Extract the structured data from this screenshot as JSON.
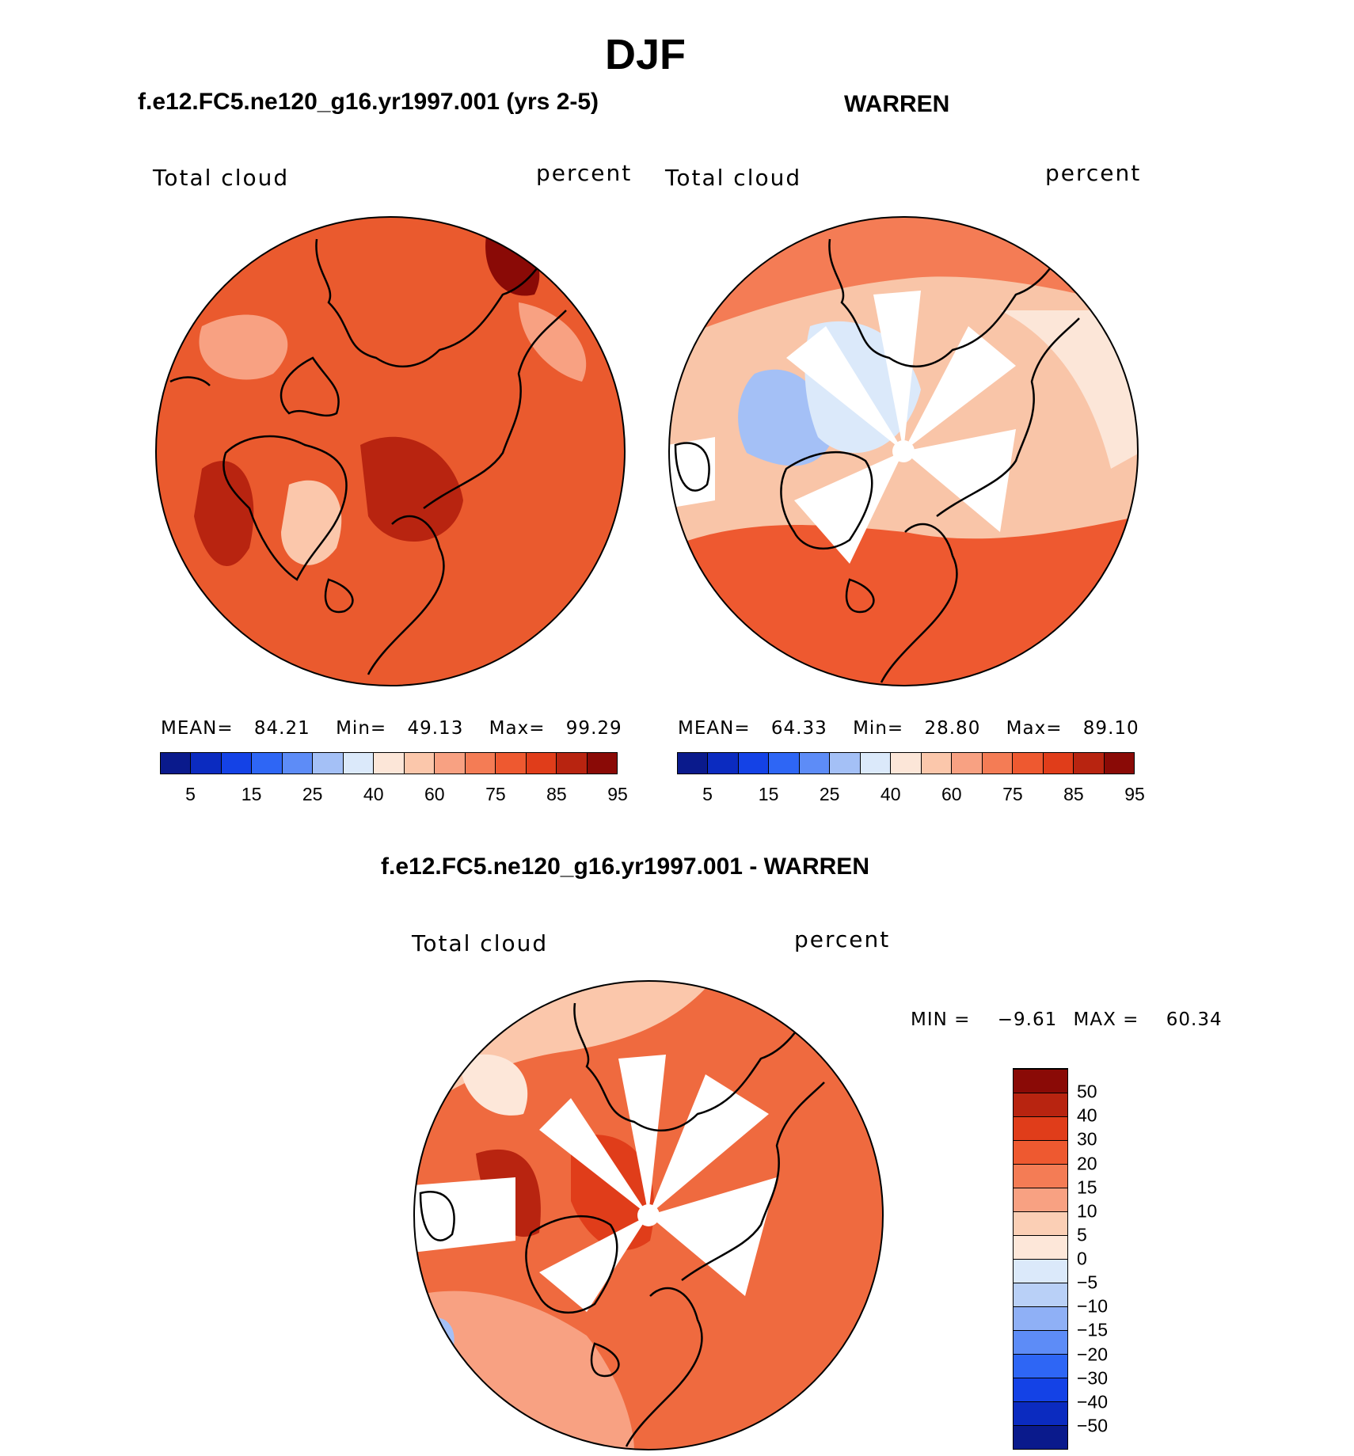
{
  "title": "DJF",
  "panels": {
    "left": {
      "title": "f.e12.FC5.ne120_g16.yr1997.001 (yrs 2-5)",
      "variable": "Total cloud",
      "units": "percent",
      "stats": {
        "mean_label": "MEAN=",
        "mean": "84.21",
        "min_label": "Min=",
        "min": "49.13",
        "max_label": "Max=",
        "max": "99.29"
      }
    },
    "right": {
      "title": "WARREN",
      "variable": "Total cloud",
      "units": "percent",
      "stats": {
        "mean_label": "MEAN=",
        "mean": "64.33",
        "min_label": "Min=",
        "min": "28.80",
        "max_label": "Max=",
        "max": "89.10"
      }
    },
    "diff": {
      "title": "f.e12.FC5.ne120_g16.yr1997.001 - WARREN",
      "variable": "Total cloud",
      "units": "percent",
      "stats": {
        "min_label": "MIN =",
        "min": "−9.61",
        "max_label": "MAX =",
        "max": "60.34"
      }
    }
  },
  "colorbar_abs": {
    "labels": [
      "5",
      "15",
      "25",
      "40",
      "60",
      "75",
      "85",
      "95"
    ],
    "colors": [
      "#0a1a8c",
      "#0b2bc0",
      "#1442e6",
      "#2e66f5",
      "#5d8cf7",
      "#a4c0f6",
      "#dbe9fa",
      "#fce6d8",
      "#fbc7ab",
      "#f8a182",
      "#f47c55",
      "#ee5930",
      "#e03d1a",
      "#b82410",
      "#8a0a06"
    ]
  },
  "colorbar_diff": {
    "labels": [
      "50",
      "40",
      "30",
      "20",
      "15",
      "10",
      "5",
      "0",
      "−5",
      "−10",
      "−15",
      "−20",
      "−30",
      "−40",
      "−50"
    ],
    "colors_bottom_to_top": [
      "#0a1a8c",
      "#0b2bc0",
      "#1442e6",
      "#2e66f5",
      "#5d8cf7",
      "#8fb0f6",
      "#b9d0f7",
      "#dbe9fa",
      "#fde7d9",
      "#fbcfb5",
      "#f8a182",
      "#f47c55",
      "#ee5930",
      "#e03d1a",
      "#b82410",
      "#8a0a06"
    ]
  },
  "map_colors": {
    "abs_background": "#ea5a2e",
    "warren_background": "#f9c5a8",
    "diff_background": "#ef6a3f",
    "missing": "#ffffff",
    "coast": "#000000"
  }
}
